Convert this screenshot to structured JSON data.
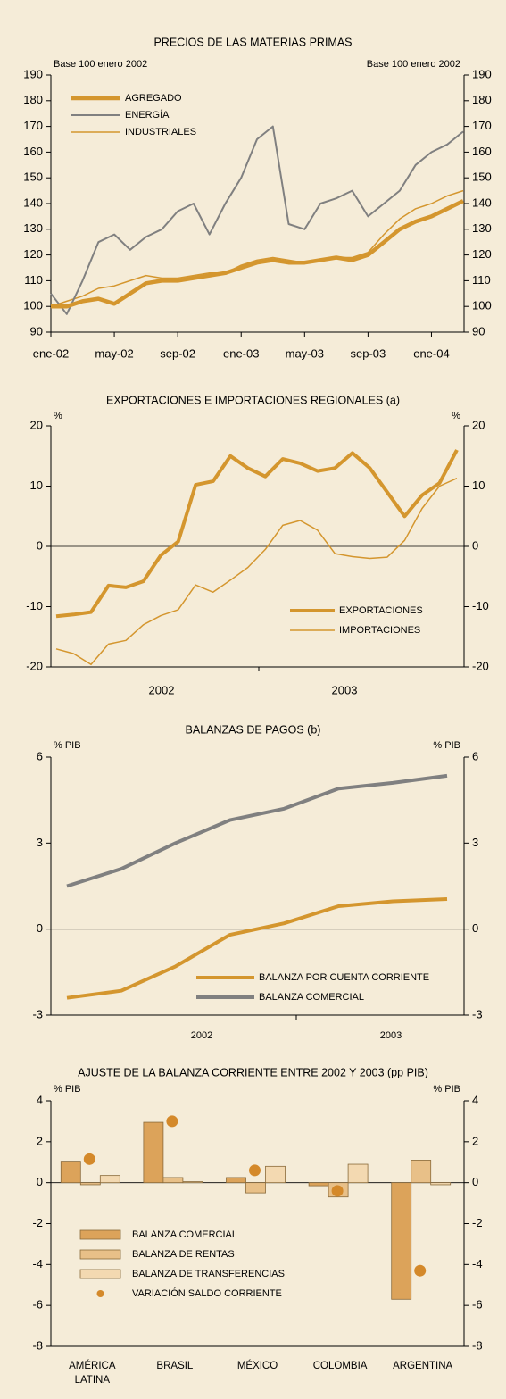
{
  "chart_data": [
    {
      "type": "line",
      "title": "PRECIOS DE LAS MATERIAS PRIMAS",
      "unit_label_left": "Base 100 enero 2002",
      "unit_label_right": "Base 100 enero 2002",
      "categories": [
        "ene-02",
        null,
        null,
        null,
        "may-02",
        null,
        null,
        null,
        "sep-02",
        null,
        null,
        null,
        "ene-03",
        null,
        null,
        null,
        "may-03",
        null,
        null,
        null,
        "sep-03",
        null,
        null,
        null,
        "ene-04",
        null,
        null
      ],
      "series": [
        {
          "name": "AGREGADO",
          "color": "#d4962e",
          "values": [
            100,
            100,
            102,
            103,
            101,
            105,
            109,
            110,
            110,
            111,
            112,
            113,
            115,
            117,
            118,
            117,
            117,
            118,
            119,
            118,
            120,
            125,
            130,
            133,
            135,
            138,
            141
          ]
        },
        {
          "name": "ENERGÍA",
          "color": "#808080",
          "values": [
            105,
            97,
            110,
            125,
            128,
            122,
            127,
            130,
            137,
            140,
            128,
            140,
            150,
            165,
            170,
            132,
            130,
            140,
            142,
            145,
            135,
            140,
            145,
            155,
            160,
            163,
            168
          ]
        },
        {
          "name": "INDUSTRIALES",
          "color": "#d4962e",
          "values": [
            100,
            102,
            104,
            107,
            108,
            110,
            112,
            111,
            111,
            112,
            113,
            113,
            116,
            118,
            119,
            118,
            117,
            118,
            119,
            119,
            121,
            128,
            134,
            138,
            140,
            143,
            145
          ]
        }
      ],
      "ylim": [
        90,
        190
      ],
      "yticks": [
        90,
        100,
        110,
        120,
        130,
        140,
        150,
        160,
        170,
        180,
        190
      ]
    },
    {
      "type": "line",
      "title": "EXPORTACIONES E IMPORTACIONES REGIONALES (a)",
      "unit_label_left": "%",
      "unit_label_right": "%",
      "period_labels": [
        "2002",
        "2003"
      ],
      "series": [
        {
          "name": "EXPORTACIONES",
          "color": "#d4962e",
          "values": [
            -11.6,
            -11.3,
            -10.9,
            -6.5,
            -6.8,
            -5.8,
            -1.5,
            0.8,
            10.2,
            10.8,
            15,
            13,
            11.6,
            14.5,
            13.8,
            12.5,
            13,
            15.5,
            13,
            9,
            5,
            8.5,
            10.5,
            16
          ]
        },
        {
          "name": "IMPORTACIONES",
          "color": "#d4962e",
          "values": [
            -17,
            -17.8,
            -19.6,
            -16.2,
            -15.6,
            -13,
            -11.5,
            -10.5,
            -6.4,
            -7.6,
            -5.6,
            -3.5,
            -0.5,
            3.5,
            4.3,
            2.7,
            -1.2,
            -1.7,
            -2,
            -1.8,
            1,
            6.3,
            10,
            11.3
          ]
        }
      ],
      "ylim": [
        -20,
        20
      ],
      "yticks": [
        -20,
        -10,
        0,
        10,
        20
      ]
    },
    {
      "type": "line",
      "title": "BALANZAS DE PAGOS (b)",
      "unit_label_left": "% PIB",
      "unit_label_right": "% PIB",
      "period_labels": [
        "2002",
        "2003"
      ],
      "series": [
        {
          "name": "BALANZA POR CUENTA CORRIENTE",
          "color": "#d4962e",
          "values": [
            -2.4,
            -2.15,
            -1.3,
            -0.2,
            0.2,
            0.8,
            0.97,
            1.05
          ]
        },
        {
          "name": "BALANZA COMERCIAL",
          "color": "#808080",
          "values": [
            1.5,
            2.1,
            3.0,
            3.8,
            4.2,
            4.9,
            5.1,
            5.35
          ]
        }
      ],
      "ylim": [
        -3,
        6
      ],
      "yticks": [
        -3,
        0,
        3,
        6
      ]
    },
    {
      "type": "bar",
      "title": "AJUSTE DE LA BALANZA CORRIENTE ENTRE 2002 Y 2003 (pp PIB)",
      "unit_label_left": "% PIB",
      "unit_label_right": "% PIB",
      "categories": [
        "AMÉRICA LATINA",
        "BRASIL",
        "MÉXICO",
        "COLOMBIA",
        "ARGENTINA"
      ],
      "series": [
        {
          "name": "BALANZA COMERCIAL",
          "color": "#dca35a",
          "values": [
            1.05,
            2.95,
            0.25,
            -0.15,
            -5.7
          ]
        },
        {
          "name": "BALANZA DE RENTAS",
          "color": "#e8c088",
          "values": [
            -0.1,
            0.25,
            -0.5,
            -0.7,
            1.1
          ]
        },
        {
          "name": "BALANZA DE TRANSFERENCIAS",
          "color": "#f3d9b1",
          "values": [
            0.35,
            0.05,
            0.8,
            0.9,
            -0.1
          ]
        },
        {
          "name": "VARIACIÓN SALDO CORRIENTE",
          "color": "#d4892a",
          "mark": "dot",
          "values": [
            1.15,
            3.0,
            0.6,
            -0.4,
            -4.3
          ]
        }
      ],
      "ylim": [
        -8,
        4
      ],
      "yticks": [
        -8,
        -6,
        -4,
        -2,
        0,
        2,
        4
      ]
    }
  ]
}
